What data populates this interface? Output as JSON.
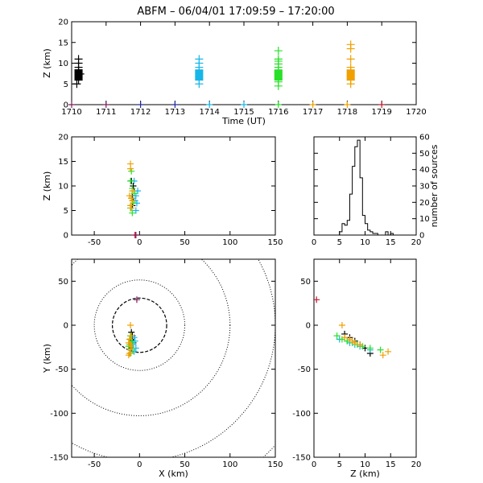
{
  "title": "ABFM – 06/04/01 17:09:59 – 17:20:00",
  "colors": {
    "black": "#000000",
    "purple": "#7a1f5a",
    "blue": "#1f2a9a",
    "cyan": "#18b6e8",
    "green": "#28e028",
    "orange": "#f0a000",
    "crimson": "#c0182a"
  },
  "chart_data": [
    {
      "id": "time_height",
      "type": "scatter",
      "xlabel": "Time (UT)",
      "ylabel": "Z (km)",
      "xlim": [
        1710,
        1720
      ],
      "ylim": [
        0,
        20
      ],
      "xticks": [
        "1710",
        "1711",
        "1712",
        "1713",
        "1714",
        "1715",
        "1716",
        "1717",
        "1718",
        "1719",
        "1720"
      ],
      "yticks": [
        "0",
        "5",
        "10",
        "15",
        "20"
      ],
      "series": [
        {
          "color": "black",
          "x": [
            1710.2,
            1710.2,
            1710.2,
            1710.2,
            1710.2,
            1710.2,
            1710.2,
            1710.2,
            1710.15,
            1710.25
          ],
          "y": [
            6.0,
            6.6,
            7.2,
            7.8,
            8.4,
            9.0,
            10.0,
            11.0,
            5.0,
            7.4
          ]
        },
        {
          "color": "cyan",
          "x": [
            1713.7,
            1713.7,
            1713.7,
            1713.7,
            1713.7,
            1713.7,
            1713.7,
            1713.7
          ],
          "y": [
            5.0,
            6.0,
            6.8,
            7.5,
            8.2,
            9.0,
            10.0,
            11.0
          ]
        },
        {
          "color": "green",
          "x": [
            1716.0,
            1716.0,
            1716.0,
            1716.0,
            1716.0,
            1716.0,
            1716.0,
            1716.0,
            1716.0,
            1716.0,
            1716.0
          ],
          "y": [
            4.5,
            5.5,
            6.2,
            7.0,
            7.6,
            8.2,
            9.0,
            9.8,
            10.5,
            11.0,
            13.0
          ]
        },
        {
          "color": "orange",
          "x": [
            1718.1,
            1718.1,
            1718.1,
            1718.1,
            1718.1,
            1718.1,
            1718.1,
            1718.1,
            1718.1
          ],
          "y": [
            5.0,
            6.0,
            7.0,
            7.6,
            8.2,
            9.0,
            11.0,
            13.5,
            14.5
          ]
        }
      ],
      "ground_markers": {
        "x": [
          1710.0,
          1711.0,
          1712.0,
          1713.0,
          1714.0,
          1715.0,
          1716.0,
          1717.0,
          1718.0,
          1719.0
        ],
        "colors": [
          "purple",
          "purple",
          "blue",
          "blue",
          "cyan",
          "cyan",
          "green",
          "orange",
          "orange",
          "crimson"
        ]
      }
    },
    {
      "id": "x_height",
      "type": "scatter",
      "xlabel": "",
      "ylabel": "Z (km)",
      "xlim": [
        -75,
        150
      ],
      "ylim": [
        0,
        20
      ],
      "xticks": [
        "-50",
        "0",
        "50",
        "100",
        "150"
      ],
      "yticks": [
        "0",
        "5",
        "10",
        "15",
        "20"
      ],
      "series": [
        {
          "color": "black",
          "x": [
            -8,
            -7,
            -8,
            -6,
            -7,
            -9
          ],
          "y": [
            6,
            7,
            8,
            9,
            10,
            11
          ]
        },
        {
          "color": "cyan",
          "x": [
            -4,
            -3,
            -5,
            -4,
            -2,
            -6
          ],
          "y": [
            5,
            6.5,
            7,
            8,
            9,
            11
          ]
        },
        {
          "color": "green",
          "x": [
            -8,
            -10,
            -7,
            -9,
            -6,
            -8,
            -10,
            -9
          ],
          "y": [
            4.5,
            5.5,
            6.5,
            7.5,
            8.5,
            9.5,
            11,
            13
          ]
        },
        {
          "color": "orange",
          "x": [
            -9,
            -10,
            -8,
            -9,
            -11,
            -8,
            -10,
            -10
          ],
          "y": [
            5.5,
            6,
            7,
            7.5,
            8,
            9,
            13.5,
            14.5
          ]
        }
      ],
      "ground_markers": {
        "x": [
          -5,
          -4
        ],
        "colors": [
          "crimson",
          "purple"
        ]
      }
    },
    {
      "id": "height_histogram",
      "type": "bar",
      "xlabel": "",
      "ylabel": "number of sources",
      "xlim": [
        0,
        20
      ],
      "ylim": [
        0,
        60
      ],
      "xticks": [
        "0",
        "5",
        "10",
        "15",
        "20"
      ],
      "yticks": [
        "0",
        "10",
        "20",
        "30",
        "40",
        "50",
        "60"
      ],
      "bin_width": 0.5,
      "bin_start": 0,
      "values": [
        0,
        0,
        0,
        0,
        0,
        0,
        0,
        0,
        0,
        0,
        2,
        7,
        6,
        9,
        25,
        42,
        54,
        58,
        35,
        12,
        7,
        3,
        2,
        1,
        1,
        0,
        0,
        0,
        2,
        0,
        1,
        0,
        0,
        0,
        0,
        0,
        0,
        0,
        0,
        0
      ]
    },
    {
      "id": "plan_view",
      "type": "scatter",
      "xlabel": "X (km)",
      "ylabel": "Y (km)",
      "xlim": [
        -75,
        150
      ],
      "ylim": [
        -150,
        75
      ],
      "xticks": [
        "-50",
        "0",
        "50",
        "100",
        "150"
      ],
      "yticks": [
        "-150",
        "-100",
        "-50",
        "0",
        "50"
      ],
      "range_rings_km": [
        30,
        50,
        100,
        150,
        200
      ],
      "series": [
        {
          "color": "black",
          "x": [
            -9,
            -8,
            -10,
            -7,
            -9
          ],
          "y": [
            -8,
            -12,
            -16,
            -20,
            -26
          ]
        },
        {
          "color": "cyan",
          "x": [
            -6,
            -5,
            -7,
            -4,
            -6,
            -8
          ],
          "y": [
            -14,
            -18,
            -22,
            -26,
            -30,
            -20
          ]
        },
        {
          "color": "green",
          "x": [
            -10,
            -11,
            -9,
            -12,
            -8,
            -10,
            -9,
            -11
          ],
          "y": [
            -12,
            -16,
            -20,
            -24,
            -28,
            -32,
            -18,
            -22
          ]
        },
        {
          "color": "orange",
          "x": [
            -10,
            -9,
            -11,
            -12,
            -9,
            -10,
            -11,
            -12,
            -10
          ],
          "y": [
            0,
            -12,
            -16,
            -20,
            -24,
            -28,
            -32,
            -34,
            -22
          ]
        }
      ],
      "ground_markers": {
        "x": [
          -3
        ],
        "y": [
          29
        ],
        "colors": [
          "purple"
        ]
      }
    },
    {
      "id": "height_y",
      "type": "scatter",
      "xlabel": "Z (km)",
      "ylabel": "",
      "xlim": [
        0,
        20
      ],
      "ylim": [
        -150,
        75
      ],
      "xticks": [
        "0",
        "5",
        "10",
        "15",
        "20"
      ],
      "yticks": [
        "-150",
        "-100",
        "-50",
        "0",
        "50"
      ],
      "series": [
        {
          "color": "black",
          "x": [
            6,
            7,
            8,
            9,
            10,
            11
          ],
          "y": [
            -10,
            -14,
            -18,
            -22,
            -26,
            -32
          ]
        },
        {
          "color": "cyan",
          "x": [
            5,
            6.5,
            7,
            8,
            9,
            11
          ],
          "y": [
            -16,
            -18,
            -20,
            -22,
            -24,
            -28
          ]
        },
        {
          "color": "green",
          "x": [
            4.5,
            5.5,
            6.5,
            7.5,
            8.5,
            9.5,
            11,
            13
          ],
          "y": [
            -12,
            -16,
            -18,
            -20,
            -22,
            -24,
            -26,
            -28
          ]
        },
        {
          "color": "orange",
          "x": [
            5.5,
            6,
            7,
            7.5,
            8,
            9,
            13.5,
            14.5
          ],
          "y": [
            0,
            -14,
            -16,
            -18,
            -20,
            -22,
            -34,
            -30
          ]
        }
      ],
      "ground_markers": {
        "x": [
          0.5
        ],
        "y": [
          29
        ],
        "colors": [
          "crimson"
        ]
      }
    }
  ]
}
